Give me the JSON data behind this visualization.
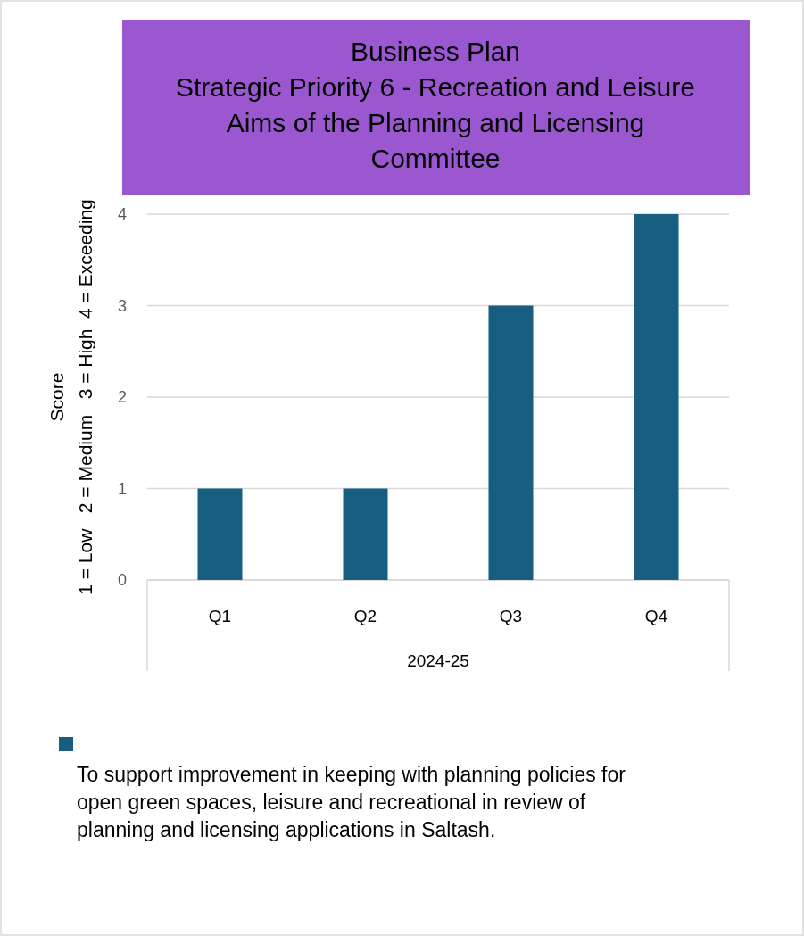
{
  "chart_data": {
    "type": "bar",
    "title": "Business Plan\nStrategic Priority 6 - Recreation and Leisure\nAims of the Planning and Licensing\nCommittee",
    "ylabel": "Score\n1 = Low   2 = Medium   3 = High  4 = Exceeding",
    "xlabel": "2024-25",
    "categories": [
      "Q1",
      "Q2",
      "Q3",
      "Q4"
    ],
    "series": [
      {
        "name": "To support improvement in keeping with planning policies for open green spaces, leisure and recreational in review of planning and licensing applications in Saltash.",
        "color": "#175e80",
        "values": [
          1,
          1,
          3,
          4
        ]
      }
    ],
    "ylim": [
      0,
      4
    ],
    "yticks": [
      0,
      1,
      2,
      3,
      4
    ],
    "grid": "y",
    "legend": "bottom"
  }
}
